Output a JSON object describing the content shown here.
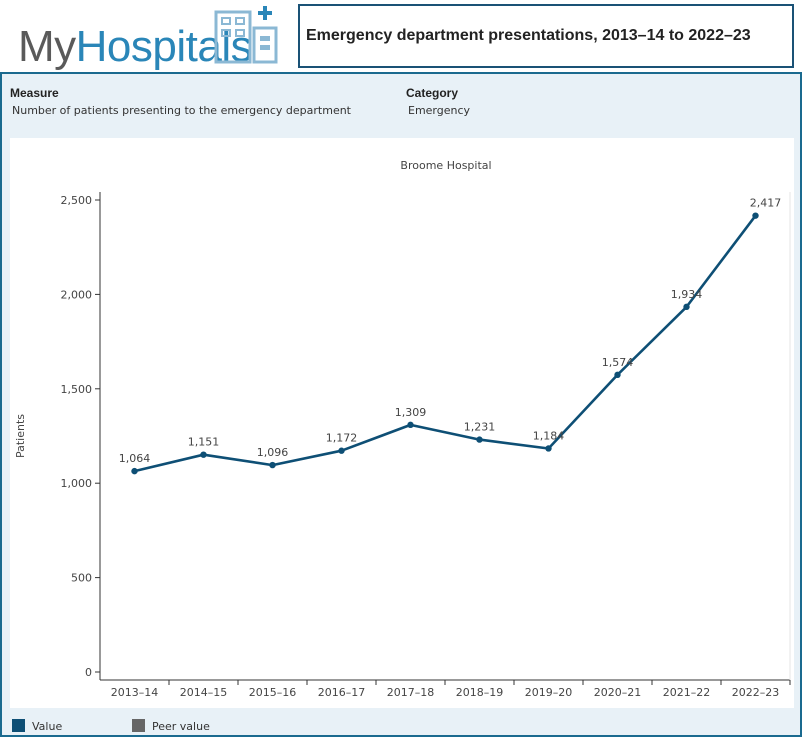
{
  "header": {
    "logo_my": "My",
    "logo_hospitals": "Hospitals",
    "title": "Emergency department presentations, 2013–14 to 2022–23"
  },
  "meta": {
    "measure_label": "Measure",
    "measure_value": "Number of patients presenting to the emergency department",
    "category_label": "Category",
    "category_value": "Emergency"
  },
  "legend": {
    "value_label": "Value",
    "peer_label": "Peer value"
  },
  "colors": {
    "line": "#0e4f75",
    "peer": "#666666",
    "border": "#1a5276"
  },
  "chart_data": {
    "type": "line",
    "title": "Broome Hospital",
    "xlabel": "",
    "ylabel": "Patients",
    "ylim": [
      0,
      2500
    ],
    "yticks": [
      0,
      500,
      1000,
      1500,
      2000,
      2500
    ],
    "ytick_labels": [
      "0",
      "500",
      "1,000",
      "1,500",
      "2,000",
      "2,500"
    ],
    "categories": [
      "2013–14",
      "2014–15",
      "2015–16",
      "2016–17",
      "2017–18",
      "2018–19",
      "2019–20",
      "2020–21",
      "2021–22",
      "2022–23"
    ],
    "series": [
      {
        "name": "Value",
        "values": [
          1064,
          1151,
          1096,
          1172,
          1309,
          1231,
          1184,
          1574,
          1934,
          2417
        ],
        "labels": [
          "1,064",
          "1,151",
          "1,096",
          "1,172",
          "1,309",
          "1,231",
          "1,184",
          "1,574",
          "1,934",
          "2,417"
        ]
      }
    ]
  }
}
